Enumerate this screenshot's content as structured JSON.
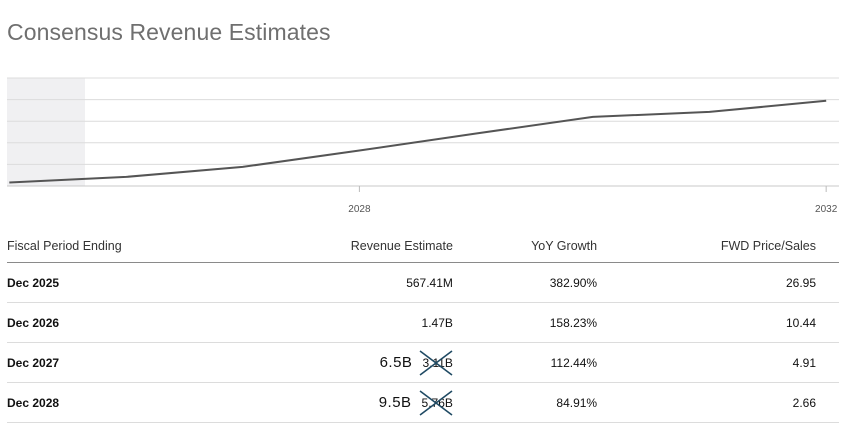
{
  "title": "Consensus Revenue Estimates",
  "chart_data": {
    "type": "line",
    "x": [
      2025,
      2026,
      2027,
      2028,
      2029,
      2030,
      2031,
      2032
    ],
    "values": [
      0.57,
      1.47,
      3.1,
      5.76,
      8.5,
      11.2,
      12.0,
      13.8
    ],
    "x_ticks": [
      "2028",
      "2032"
    ],
    "xlim": [
      2024.98,
      2032.11
    ],
    "ylim": [
      0,
      17.5
    ],
    "grid": true,
    "line_color": "#555555",
    "shaded_region_color": "#f0f0f2"
  },
  "table": {
    "headers": [
      "Fiscal Period Ending",
      "Revenue Estimate",
      "YoY Growth",
      "FWD Price/Sales"
    ],
    "rows": [
      {
        "period": "Dec 2025",
        "revenue": "567.41M",
        "handwritten": "",
        "yoy": "382.90%",
        "ps": "26.95"
      },
      {
        "period": "Dec 2026",
        "revenue": "1.47B",
        "handwritten": "",
        "yoy": "158.23%",
        "ps": "10.44"
      },
      {
        "period": "Dec 2027",
        "revenue": "3.11B",
        "handwritten": "6.5B",
        "yoy": "112.44%",
        "ps": "4.91"
      },
      {
        "period": "Dec 2028",
        "revenue": "5.76B",
        "handwritten": "9.5B",
        "yoy": "84.91%",
        "ps": "2.66"
      }
    ]
  },
  "colors": {
    "title": "#6f6f6f",
    "cross_mark": "#1f4a63",
    "grid": "#d9d9d9"
  }
}
